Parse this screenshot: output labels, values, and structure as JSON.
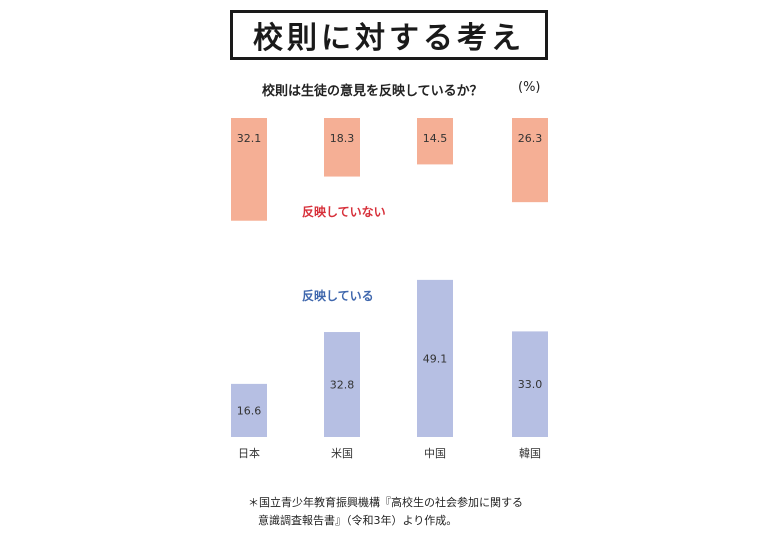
{
  "title": "校則に対する考え",
  "chart_data": {
    "type": "bar",
    "subtitle": "校則は生徒の意見を反映しているか？",
    "unit": "(%)",
    "categories": [
      "日本",
      "米国",
      "中国",
      "韓国"
    ],
    "series": [
      {
        "name": "反映していない",
        "values": [
          32.1,
          18.3,
          14.5,
          26.3
        ],
        "color": "#f5af95",
        "label_color": "#d7303a"
      },
      {
        "name": "反映している",
        "values": [
          16.6,
          32.8,
          49.1,
          33.0
        ],
        "color": "#b6bfe3",
        "label_color": "#3f67ad"
      }
    ]
  },
  "footnote": {
    "line1": "＊国立青少年教育振興機構『高校生の社会参加に関する",
    "line2": "意識調査報告書』（令和3年）より作成。"
  }
}
